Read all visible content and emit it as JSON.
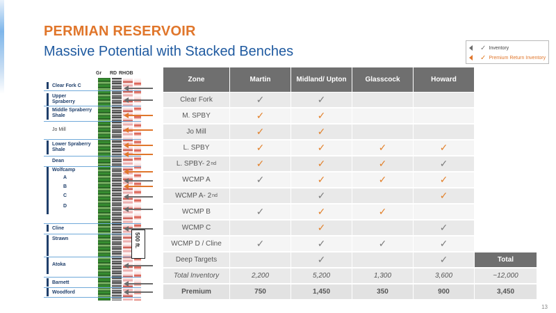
{
  "title": "PERMIAN RESERVOIR",
  "subtitle": "Massive Potential with Stacked Benches",
  "legend": {
    "inventory": "Inventory",
    "premium": "Premium Return Inventory",
    "colors": {
      "inventory": "#6b6b6b",
      "premium": "#e0762b"
    }
  },
  "log": {
    "headers": [
      "Gr",
      "RD",
      "RHOB"
    ],
    "zones": [
      "Clear Fork C",
      "Upper Spraberry",
      "Middle Spraberry Shale",
      "Jo Mill",
      "Lower Spraberry Shale",
      "Dean",
      "Wolfcamp",
      "A",
      "B",
      "C",
      "D",
      "Cline",
      "Strawn",
      "Atoka",
      "Barnett",
      "Woodford"
    ],
    "scale": "500 ft."
  },
  "table": {
    "headers": [
      "Zone",
      "Martin",
      "Midland/ Upton",
      "Glasscock",
      "Howard"
    ],
    "total_header": "Total",
    "rows": [
      {
        "zone": "Clear Fork",
        "sup": "",
        "marks": [
          "gray",
          "gray",
          "",
          ""
        ]
      },
      {
        "zone": "M. SPBY",
        "sup": "",
        "marks": [
          "orange",
          "orange",
          "",
          ""
        ]
      },
      {
        "zone": "Jo Mill",
        "sup": "",
        "marks": [
          "orange",
          "orange",
          "",
          ""
        ]
      },
      {
        "zone": "L. SPBY",
        "sup": "",
        "marks": [
          "orange",
          "orange",
          "orange",
          "orange"
        ]
      },
      {
        "zone": "L. SPBY- 2",
        "sup": "nd",
        "marks": [
          "orange",
          "orange",
          "orange",
          "gray"
        ]
      },
      {
        "zone": "WCMP A",
        "sup": "",
        "marks": [
          "gray",
          "orange",
          "orange",
          "orange"
        ]
      },
      {
        "zone": "WCMP A- 2",
        "sup": "nd",
        "marks": [
          "",
          "gray",
          "",
          "orange"
        ]
      },
      {
        "zone": "WCMP B",
        "sup": "",
        "marks": [
          "gray",
          "orange",
          "orange",
          ""
        ]
      },
      {
        "zone": "WCMP C",
        "sup": "",
        "marks": [
          "",
          "orange",
          "",
          "gray"
        ]
      },
      {
        "zone": "WCMP D / Cline",
        "sup": "",
        "marks": [
          "gray",
          "gray",
          "gray",
          "gray"
        ]
      },
      {
        "zone": "Deep Targets",
        "sup": "",
        "marks": [
          "",
          "gray",
          "",
          "gray"
        ]
      }
    ],
    "total_inventory": {
      "label": "Total Inventory",
      "values": [
        "2,200",
        "5,200",
        "1,300",
        "3,600",
        "~12,000"
      ]
    },
    "premium": {
      "label": "Premium",
      "values": [
        "750",
        "1,450",
        "350",
        "900",
        "3,450"
      ]
    }
  },
  "check_glyph": "✓",
  "page_number": "13"
}
